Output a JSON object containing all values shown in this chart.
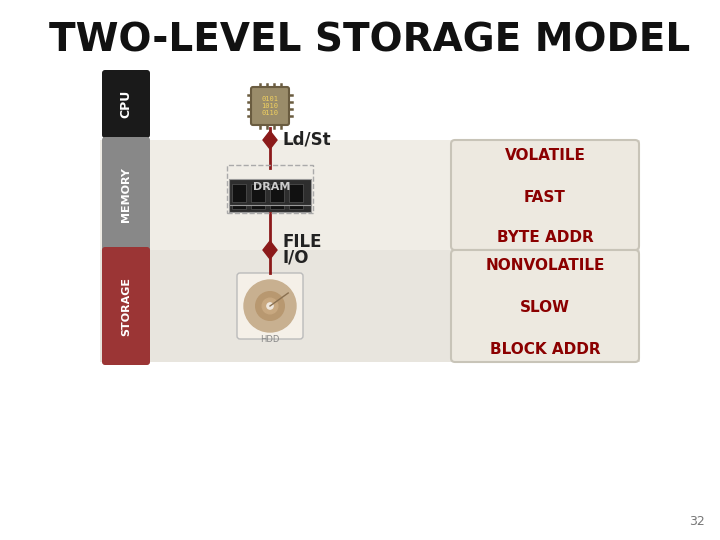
{
  "title": "TWO-LEVEL STORAGE MODEL",
  "title_fontsize": 28,
  "title_fontweight": "bold",
  "background_color": "#ffffff",
  "memory_band_color": "#f0ede6",
  "storage_band_color": "#e8e5de",
  "cpu_box_color": "#1a1a1a",
  "cpu_text_color": "#ffffff",
  "cpu_label": "CPU",
  "memory_box_color": "#888888",
  "memory_text_color": "#ffffff",
  "memory_label": "MEMORY",
  "storage_box_color": "#9b3535",
  "storage_text_color": "#ffffff",
  "storage_label": "STORAGE",
  "arrow_color": "#8b1a1a",
  "ldst_label": "Ld/St",
  "dram_label": "DRAM",
  "volatile_box_color": "#ede9e0",
  "volatile_border_color": "#c8c4b8",
  "volatile_labels": [
    "VOLATILE",
    "FAST",
    "BYTE ADDR"
  ],
  "nonvolatile_labels": [
    "NONVOLATILE",
    "SLOW",
    "BLOCK ADDR"
  ],
  "prop_text_color": "#8b0000",
  "prop_fontsize": 11,
  "page_number": "32",
  "chip_color": "#9a8c6a",
  "chip_pin_color": "#6a5c40",
  "chip_text_color": "#f0d060"
}
